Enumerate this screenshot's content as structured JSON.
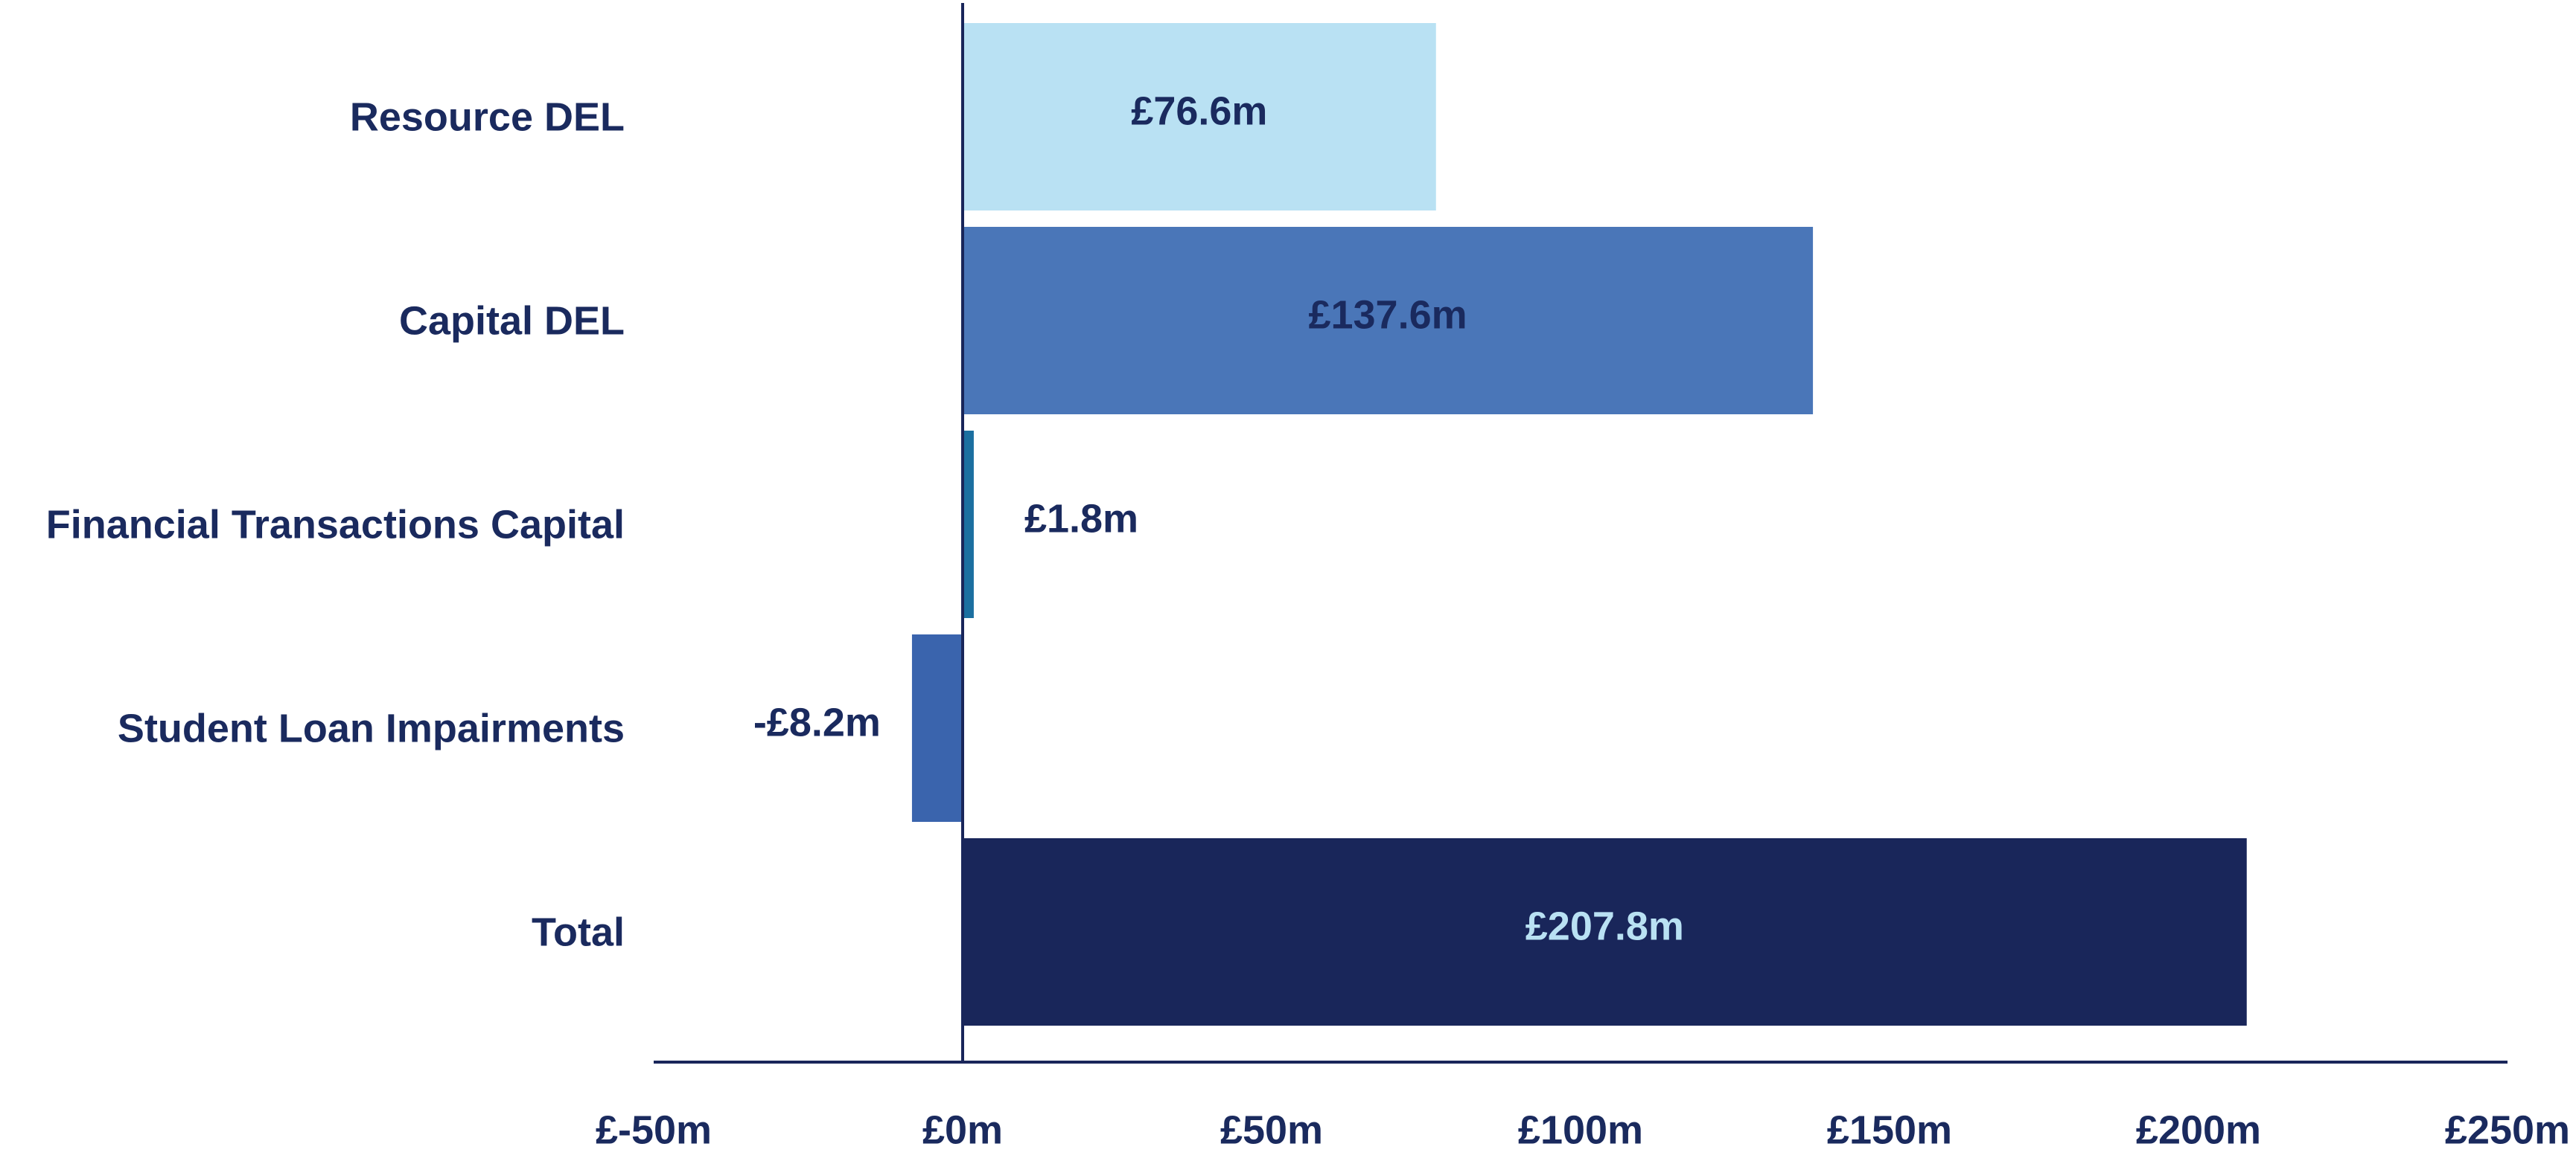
{
  "chart_data": {
    "type": "bar",
    "orientation": "horizontal",
    "categories": [
      "Resource DEL",
      "Capital DEL",
      "Financial Transactions Capital",
      "Student Loan Impairments",
      "Total"
    ],
    "values": [
      76.6,
      137.6,
      1.8,
      -8.2,
      207.8
    ],
    "value_labels": [
      "£76.6m",
      "£137.6m",
      "£1.8m",
      "-£8.2m",
      "£207.8m"
    ],
    "colors": [
      "#b9e1f3",
      "#4a76b8",
      "#1b6fa0",
      "#3a64ad",
      "#19265a"
    ],
    "label_colors": [
      "#1a2a5e",
      "#1a2a5e",
      "#1a2a5e",
      "#1a2a5e",
      "#b9e1f3"
    ],
    "xlim": [
      -50,
      250
    ],
    "xticks": [
      {
        "value": -50,
        "label": "£-50m"
      },
      {
        "value": 0,
        "label": "£0m"
      },
      {
        "value": 50,
        "label": "£50m"
      },
      {
        "value": 100,
        "label": "£100m"
      },
      {
        "value": 150,
        "label": "£150m"
      },
      {
        "value": 200,
        "label": "£200m"
      },
      {
        "value": 250,
        "label": "£250m"
      }
    ],
    "grid": false
  }
}
